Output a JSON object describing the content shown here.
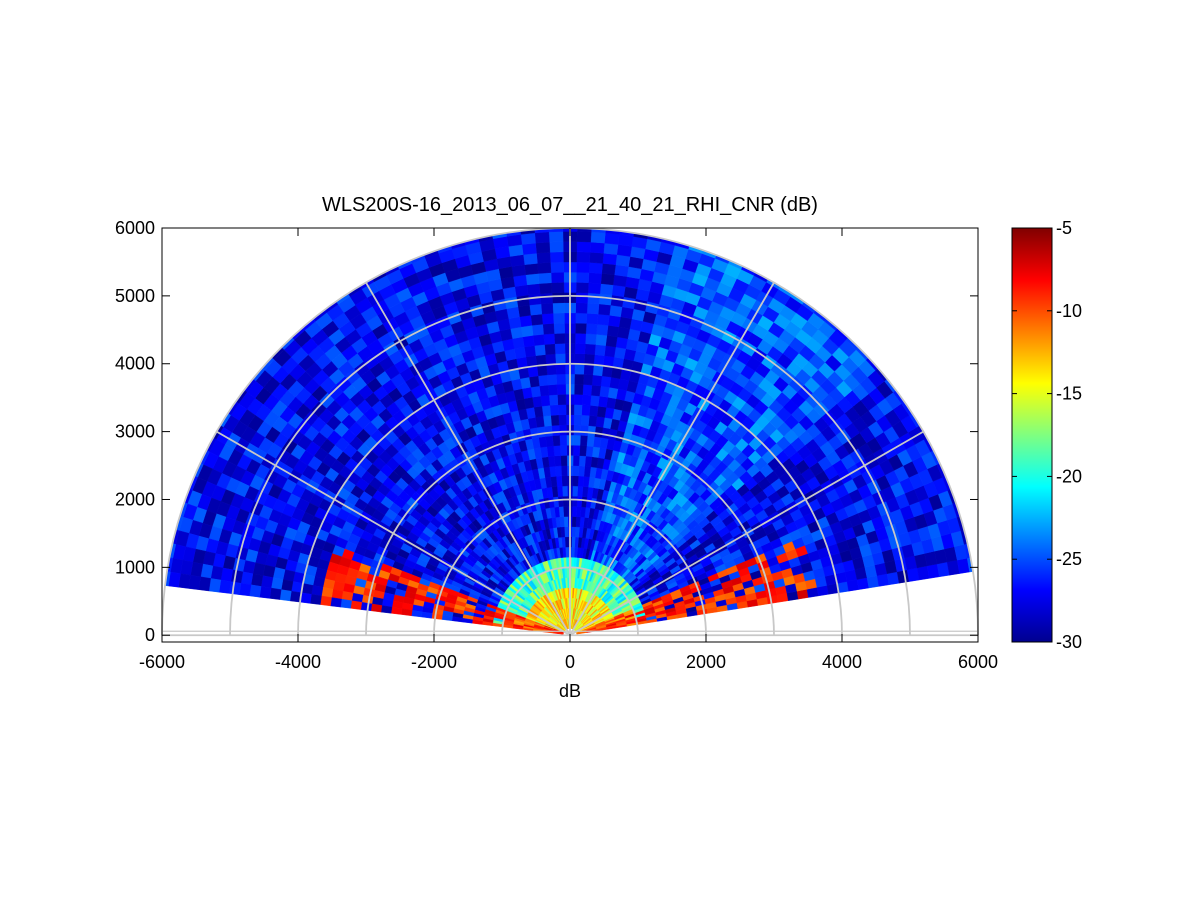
{
  "chart_data": {
    "type": "heatmap",
    "subtype": "polar-rhi-sector",
    "title": "WLS200S-16_2013_06_07__21_40_21_RHI_CNR (dB)",
    "xlabel": "dB",
    "ylabel": "",
    "xlim": [
      -6000,
      6000
    ],
    "ylim": [
      -100,
      6000
    ],
    "xticks": [
      "-6000",
      "-4000",
      "-2000",
      "0",
      "2000",
      "4000",
      "6000"
    ],
    "yticks": [
      "0",
      "1000",
      "2000",
      "3000",
      "4000",
      "5000",
      "6000"
    ],
    "polar_grid": {
      "range_rings": [
        1000,
        2000,
        3000,
        4000,
        5000,
        6000
      ],
      "spoke_angles_deg": [
        0,
        30,
        60,
        90,
        120,
        150,
        180
      ]
    },
    "scan": {
      "elevation_range_deg": [
        9,
        173
      ],
      "max_range": 6000
    },
    "colorbar": {
      "colormap": "jet",
      "range": [
        -30,
        -5
      ],
      "ticks": [
        "-5",
        "-10",
        "-15",
        "-20",
        "-25",
        "-30"
      ]
    },
    "features": [
      {
        "region": "far field (r > 1000)",
        "value_db": -27
      },
      {
        "region": "near field (r 200-1000)",
        "value_db": -18
      },
      {
        "region": "low-elevation strong returns (r 500-3500)",
        "value_db": -7
      }
    ]
  }
}
